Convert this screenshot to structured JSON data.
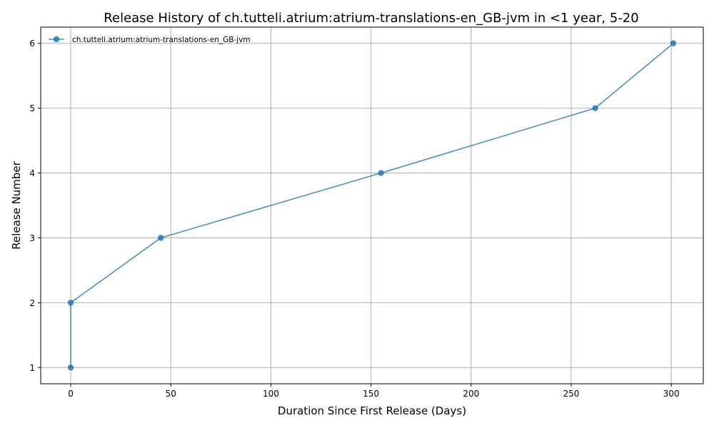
{
  "chart_data": {
    "type": "line",
    "title": "Release History of ch.tutteli.atrium:atrium-translations-en_GB-jvm in <1 year, 5-20",
    "xlabel": "Duration Since First Release (Days)",
    "ylabel": "Release Number",
    "xlim": [
      -15,
      316
    ],
    "ylim": [
      0.75,
      6.25
    ],
    "xticks": [
      0,
      50,
      100,
      150,
      200,
      250,
      300
    ],
    "yticks": [
      1,
      2,
      3,
      4,
      5,
      6
    ],
    "grid": true,
    "legend_position": "top-left",
    "series": [
      {
        "name": "ch.tutteli.atrium:atrium-translations-en_GB-jvm",
        "color": "#1f77b4",
        "x": [
          0,
          0,
          45,
          155,
          262,
          301
        ],
        "y": [
          1,
          2,
          3,
          4,
          5,
          6
        ]
      }
    ]
  }
}
